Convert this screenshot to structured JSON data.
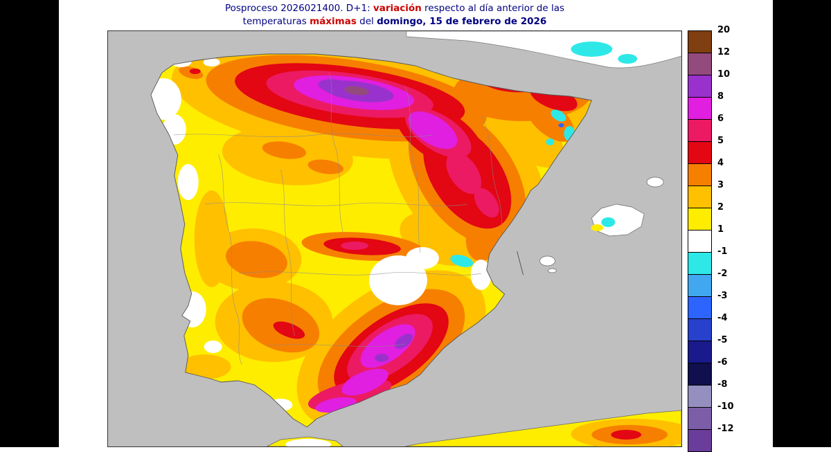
{
  "title": {
    "line1": [
      {
        "text": "Posproceso 2026021400. D+1: ",
        "style": "plain"
      },
      {
        "text": "variación",
        "style": "accent-bold"
      },
      {
        "text": " respecto al día anterior de las",
        "style": "plain"
      }
    ],
    "line2": [
      {
        "text": "temperaturas ",
        "style": "plain"
      },
      {
        "text": "máximas",
        "style": "accent-bold"
      },
      {
        "text": " del ",
        "style": "plain"
      },
      {
        "text": "domingo, 15 de febrero de 2026",
        "style": "bold"
      }
    ]
  },
  "colors": {
    "title_text": "#000080",
    "title_accent": "#cc0000",
    "sea": "#bfbfbf",
    "side_bars": "#000000"
  },
  "legend": {
    "entries": [
      {
        "label": "20",
        "color": "#7f3f10"
      },
      {
        "label": "12",
        "color": "#934a7c"
      },
      {
        "label": "10",
        "color": "#9932cc"
      },
      {
        "label": "8",
        "color": "#e01fe0"
      },
      {
        "label": "6",
        "color": "#ec1a62"
      },
      {
        "label": "5",
        "color": "#e30613"
      },
      {
        "label": "4",
        "color": "#f77f00"
      },
      {
        "label": "3",
        "color": "#ffc000"
      },
      {
        "label": "2",
        "color": "#ffed00"
      },
      {
        "label": "1",
        "color": "#ffffff"
      },
      {
        "label": "-1",
        "color": "#2ee8e8"
      },
      {
        "label": "-2",
        "color": "#41a8f0"
      },
      {
        "label": "-3",
        "color": "#2e64fe"
      },
      {
        "label": "-4",
        "color": "#2741cc"
      },
      {
        "label": "-5",
        "color": "#1a1a8c"
      },
      {
        "label": "-6",
        "color": "#10104e"
      },
      {
        "label": "-8",
        "color": "#958fc0"
      },
      {
        "label": "-10",
        "color": "#7b5ea7"
      },
      {
        "label": "-12",
        "color": "#6a3d9a"
      }
    ]
  }
}
